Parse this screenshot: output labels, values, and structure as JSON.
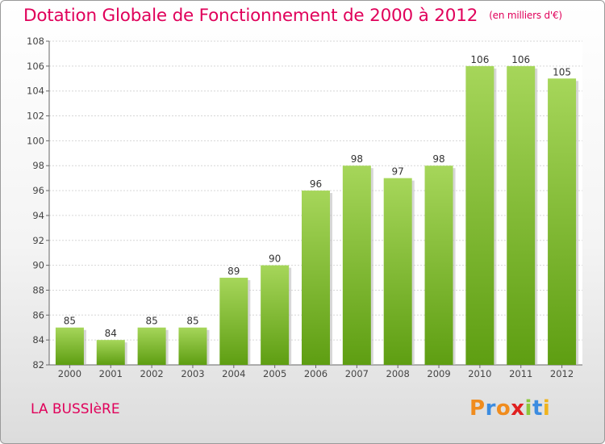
{
  "title": "Dotation Globale de Fonctionnement de 2000 à 2012",
  "subtitle": "(en milliers d'€)",
  "place": "LA BUSSIèRE",
  "brand": {
    "letters": [
      "P",
      "r",
      "o",
      "x",
      "i",
      "t",
      "i"
    ],
    "colors": [
      "#f08c1e",
      "#3c8ce0",
      "#f08c1e",
      "#e02020",
      "#8cc83c",
      "#3c8ce0",
      "#f0b41e"
    ]
  },
  "chart_data": {
    "type": "bar",
    "categories": [
      "2000",
      "2001",
      "2002",
      "2003",
      "2004",
      "2005",
      "2006",
      "2007",
      "2008",
      "2009",
      "2010",
      "2011",
      "2012"
    ],
    "values": [
      85,
      84,
      85,
      85,
      89,
      90,
      96,
      98,
      97,
      98,
      106,
      106,
      105
    ],
    "data_labels": [
      "85",
      "84",
      "85",
      "85",
      "89",
      "90",
      "96",
      "98",
      "97",
      "98",
      "106",
      "106",
      "105"
    ],
    "yticks": [
      "82",
      "84",
      "86",
      "88",
      "90",
      "92",
      "94",
      "96",
      "98",
      "100",
      "102",
      "104",
      "106",
      "108"
    ],
    "ylim": [
      82,
      108
    ],
    "grid": true,
    "bar_color_top": "#a6d65a",
    "bar_color_bottom": "#5e9e12"
  }
}
